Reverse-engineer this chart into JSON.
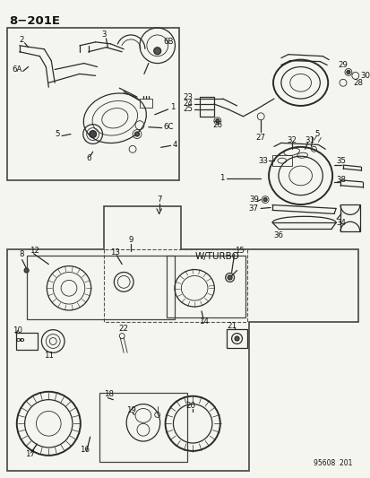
{
  "title": "8−201E",
  "background": "#f5f5f0",
  "line_color": "#2a2a2a",
  "text_color": "#111111",
  "diagram_label": "95608  201",
  "w_turbo": "W/TURBO",
  "fig_width": 4.14,
  "fig_height": 5.33,
  "dpi": 100,
  "lw_main": 0.9,
  "lw_thick": 1.4,
  "lw_thin": 0.6,
  "fs_label": 6.2,
  "fs_title": 9.5
}
